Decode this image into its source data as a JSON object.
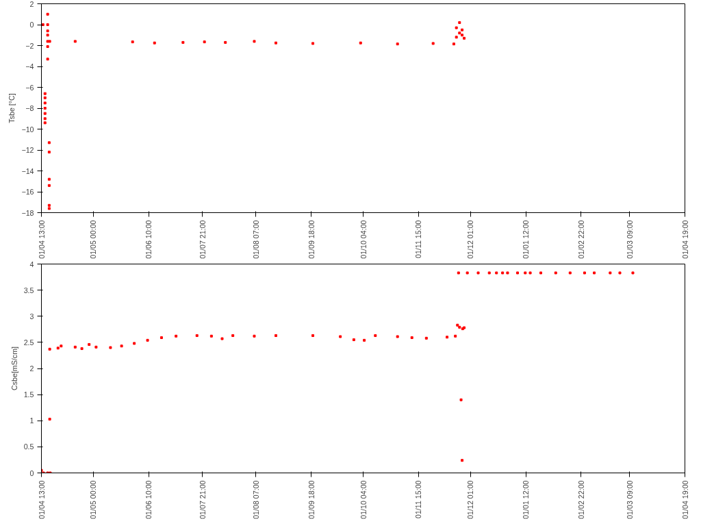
{
  "chart_data": [
    {
      "type": "scatter",
      "ylabel": "Tsbe [°C]",
      "marker": "square",
      "grid": false,
      "xlim": [
        "2001-04-01T13:00",
        "2002-04-01T19:00"
      ],
      "ylim": [
        -18,
        2
      ],
      "yticks": [
        -18,
        -16,
        -14,
        -12,
        -10,
        -8,
        -6,
        -4,
        -2,
        0,
        2
      ],
      "xticks": [
        {
          "value": "2001-04-01T13:00",
          "label": "01/04 13:00"
        },
        {
          "value": "2001-05-01T00:00",
          "label": "01/05 00:00"
        },
        {
          "value": "2001-06-01T10:00",
          "label": "01/06 10:00"
        },
        {
          "value": "2001-07-01T21:00",
          "label": "01/07 21:00"
        },
        {
          "value": "2001-08-01T07:00",
          "label": "01/08 07:00"
        },
        {
          "value": "2001-09-01T18:00",
          "label": "01/09 18:00"
        },
        {
          "value": "2001-10-01T04:00",
          "label": "01/10 04:00"
        },
        {
          "value": "2001-11-01T15:00",
          "label": "01/11 15:00"
        },
        {
          "value": "2001-12-01T01:00",
          "label": "01/12 01:00"
        },
        {
          "value": "2002-01-01T12:00",
          "label": "01/01 12:00"
        },
        {
          "value": "2002-02-01T22:00",
          "label": "01/02 22:00"
        },
        {
          "value": "2002-03-01T09:00",
          "label": "01/03 09:00"
        },
        {
          "value": "2002-04-01T19:00",
          "label": "01/04 19:00"
        }
      ],
      "series": [
        {
          "color": "#ff0000",
          "x": [
            "2001-04-02T10:00",
            "2001-04-03T14:00",
            "2001-04-03T14:00",
            "2001-04-03T14:00",
            "2001-04-03T14:00",
            "2001-04-03T14:00",
            "2001-04-03T14:00",
            "2001-04-03T14:00",
            "2001-04-05T02:00",
            "2001-04-05T02:00",
            "2001-04-05T02:00",
            "2001-04-05T02:00",
            "2001-04-05T02:00",
            "2001-04-05T02:00",
            "2001-04-05T02:00",
            "2001-04-05T23:00",
            "2001-04-05T23:00",
            "2001-04-05T23:00",
            "2001-04-05T23:00",
            "2001-04-05T23:00",
            "2001-04-05T23:00",
            "2001-04-06T06:00",
            "2001-04-20T17:00",
            "2001-05-23T07:00",
            "2001-06-04T18:00",
            "2001-06-20T22:00",
            "2001-07-03T02:00",
            "2001-07-14T23:00",
            "2001-07-31T09:00",
            "2001-08-12T15:00",
            "2001-09-02T15:00",
            "2001-09-29T17:00",
            "2001-10-20T16:00",
            "2001-11-09T21:00",
            "2001-11-21T15:00",
            "2001-11-23T02:00",
            "2001-11-23T02:00",
            "2001-11-24T21:00",
            "2001-11-24T21:00",
            "2001-11-26T08:00",
            "2001-11-26T08:00",
            "2001-11-27T12:00"
          ],
          "values": [
            0,
            -6.6,
            -7,
            -7.5,
            -8,
            -8.5,
            -9,
            -9.4,
            1,
            0,
            -0.6,
            -1,
            -1.6,
            -2.1,
            -3.3,
            -11.3,
            -12.2,
            -14.8,
            -15.4,
            -17.3,
            -17.6,
            -1.6,
            -1.6,
            -1.65,
            -1.75,
            -1.7,
            -1.65,
            -1.7,
            -1.6,
            -1.75,
            -1.8,
            -1.75,
            -1.85,
            -1.8,
            -1.85,
            -1.2,
            -0.3,
            0.2,
            -0.8,
            -1,
            -0.5,
            -1.3
          ]
        }
      ]
    },
    {
      "type": "scatter",
      "ylabel": "Csbe[mS/cm]",
      "marker": "square",
      "grid": false,
      "xlim": [
        "2001-04-01T13:00",
        "2002-04-01T19:00"
      ],
      "ylim": [
        0,
        4
      ],
      "yticks": [
        0,
        0.5,
        1,
        1.5,
        2,
        2.5,
        3,
        3.5,
        4
      ],
      "xticks": [
        {
          "value": "2001-04-01T13:00",
          "label": "01/04 13:00"
        },
        {
          "value": "2001-05-01T00:00",
          "label": "01/05 00:00"
        },
        {
          "value": "2001-06-01T10:00",
          "label": "01/06 10:00"
        },
        {
          "value": "2001-07-01T21:00",
          "label": "01/07 21:00"
        },
        {
          "value": "2001-08-01T07:00",
          "label": "01/08 07:00"
        },
        {
          "value": "2001-09-01T18:00",
          "label": "01/09 18:00"
        },
        {
          "value": "2001-10-01T04:00",
          "label": "01/10 04:00"
        },
        {
          "value": "2001-11-01T15:00",
          "label": "01/11 15:00"
        },
        {
          "value": "2001-12-01T01:00",
          "label": "01/12 01:00"
        },
        {
          "value": "2002-01-01T12:00",
          "label": "01/01 12:00"
        },
        {
          "value": "2002-02-01T22:00",
          "label": "01/02 22:00"
        },
        {
          "value": "2002-03-01T09:00",
          "label": "01/03 09:00"
        },
        {
          "value": "2002-04-01T19:00",
          "label": "01/04 19:00"
        }
      ],
      "series": [
        {
          "color": "#ff0000",
          "x": [
            "2001-04-01T13:00",
            "2001-04-02T17:00",
            "2001-04-05T02:00",
            "2001-04-06T06:00",
            "2001-04-06T13:00",
            "2001-04-06T06:00",
            "2001-04-10T23:00",
            "2001-04-12T18:00",
            "2001-04-20T17:00",
            "2001-04-24T12:00",
            "2001-04-28T15:00",
            "2001-05-02T14:00",
            "2001-05-10T18:00",
            "2001-05-17T01:00",
            "2001-05-24T06:00",
            "2001-05-31T19:00",
            "2001-06-08T17:00",
            "2001-06-16T23:00",
            "2001-06-28T20:00",
            "2001-07-07T01:00",
            "2001-07-13T03:00",
            "2001-07-19T05:00",
            "2001-07-31T09:00",
            "2001-08-12T15:00",
            "2001-09-02T15:00",
            "2001-09-18T05:00",
            "2001-09-25T21:00",
            "2001-10-01T19:00",
            "2001-10-08T02:00",
            "2001-10-20T16:00",
            "2001-10-28T20:00",
            "2001-11-06T01:00",
            "2001-11-17T19:00",
            "2001-11-22T12:00",
            "2001-11-23T17:00",
            "2001-11-24T21:00",
            "2001-11-25T18:00",
            "2001-11-26T08:00",
            "2001-11-26T15:00",
            "2001-11-27T12:00",
            "2001-11-24T07:00",
            "2001-11-29T07:00",
            "2001-12-05T11:00",
            "2001-12-11T18:00",
            "2001-12-15T20:00",
            "2001-12-19T07:00",
            "2001-12-22T03:00",
            "2001-12-27T19:00",
            "2002-01-01T04:00",
            "2002-01-04T00:00",
            "2002-01-10T00:00",
            "2002-01-18T11:00",
            "2002-01-26T15:00",
            "2002-02-03T20:00",
            "2002-02-09T08:00",
            "2002-02-18T09:00",
            "2002-02-23T21:00",
            "2002-03-03T06:00"
          ],
          "values": [
            0.05,
            0,
            0,
            1.03,
            0,
            2.37,
            2.39,
            2.43,
            2.41,
            2.38,
            2.46,
            2.41,
            2.4,
            2.43,
            2.48,
            2.54,
            2.59,
            2.62,
            2.63,
            2.62,
            2.57,
            2.63,
            2.62,
            2.63,
            2.63,
            2.61,
            2.55,
            2.54,
            2.63,
            2.61,
            2.59,
            2.58,
            2.6,
            2.62,
            2.83,
            2.79,
            1.4,
            0.24,
            2.76,
            2.78,
            3.83,
            3.83,
            3.83,
            3.83,
            3.83,
            3.83,
            3.83,
            3.83,
            3.83,
            3.83,
            3.83,
            3.83,
            3.83,
            3.83,
            3.83,
            3.83,
            3.83,
            3.83
          ]
        }
      ]
    }
  ]
}
